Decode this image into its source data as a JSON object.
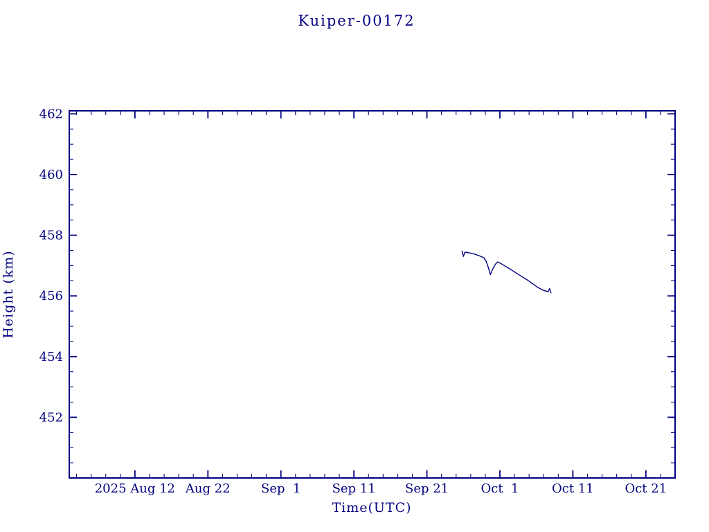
{
  "page": {
    "background_color": "#ffffff",
    "accent_color": "#000080"
  },
  "chart_data": {
    "type": "line",
    "title": "Kuiper-00172",
    "xlabel": "Time(UTC)",
    "ylabel": "Height (km)",
    "axis_color": "#000080",
    "grid": false,
    "legend": false,
    "x_axis": {
      "day0_date": "2025-08-03",
      "range_days": [
        0,
        83
      ],
      "major_ticks": [
        {
          "day": 9,
          "label": "2025 Aug 12"
        },
        {
          "day": 19,
          "label": "Aug 22"
        },
        {
          "day": 29,
          "label": "Sep  1"
        },
        {
          "day": 39,
          "label": "Sep 11"
        },
        {
          "day": 49,
          "label": "Sep 21"
        },
        {
          "day": 59,
          "label": "Oct  1"
        },
        {
          "day": 69,
          "label": "Oct 11"
        },
        {
          "day": 79,
          "label": "Oct 21"
        }
      ],
      "minor_tick_step_days": 2
    },
    "y_axis": {
      "range": [
        450,
        462.1
      ],
      "major_ticks": [
        452,
        454,
        456,
        458,
        460,
        462
      ],
      "minor_tick_step": 0.5
    },
    "series": [
      {
        "name": "Kuiper-00172 orbital height",
        "color": "#000080",
        "points_day_km": [
          [
            53.8,
            457.48
          ],
          [
            54.0,
            457.3
          ],
          [
            54.2,
            457.44
          ],
          [
            54.8,
            457.42
          ],
          [
            55.5,
            457.38
          ],
          [
            56.2,
            457.32
          ],
          [
            56.8,
            457.26
          ],
          [
            57.1,
            457.15
          ],
          [
            57.4,
            456.95
          ],
          [
            57.7,
            456.7
          ],
          [
            58.0,
            456.88
          ],
          [
            58.4,
            457.05
          ],
          [
            58.7,
            457.12
          ],
          [
            59.2,
            457.06
          ],
          [
            59.8,
            456.97
          ],
          [
            60.5,
            456.87
          ],
          [
            61.2,
            456.76
          ],
          [
            62.0,
            456.64
          ],
          [
            62.8,
            456.52
          ],
          [
            63.5,
            456.4
          ],
          [
            64.2,
            456.28
          ],
          [
            64.8,
            456.2
          ],
          [
            65.3,
            456.16
          ],
          [
            65.6,
            456.14
          ],
          [
            65.8,
            456.24
          ],
          [
            65.9,
            456.18
          ],
          [
            66.0,
            456.1
          ]
        ]
      }
    ]
  }
}
